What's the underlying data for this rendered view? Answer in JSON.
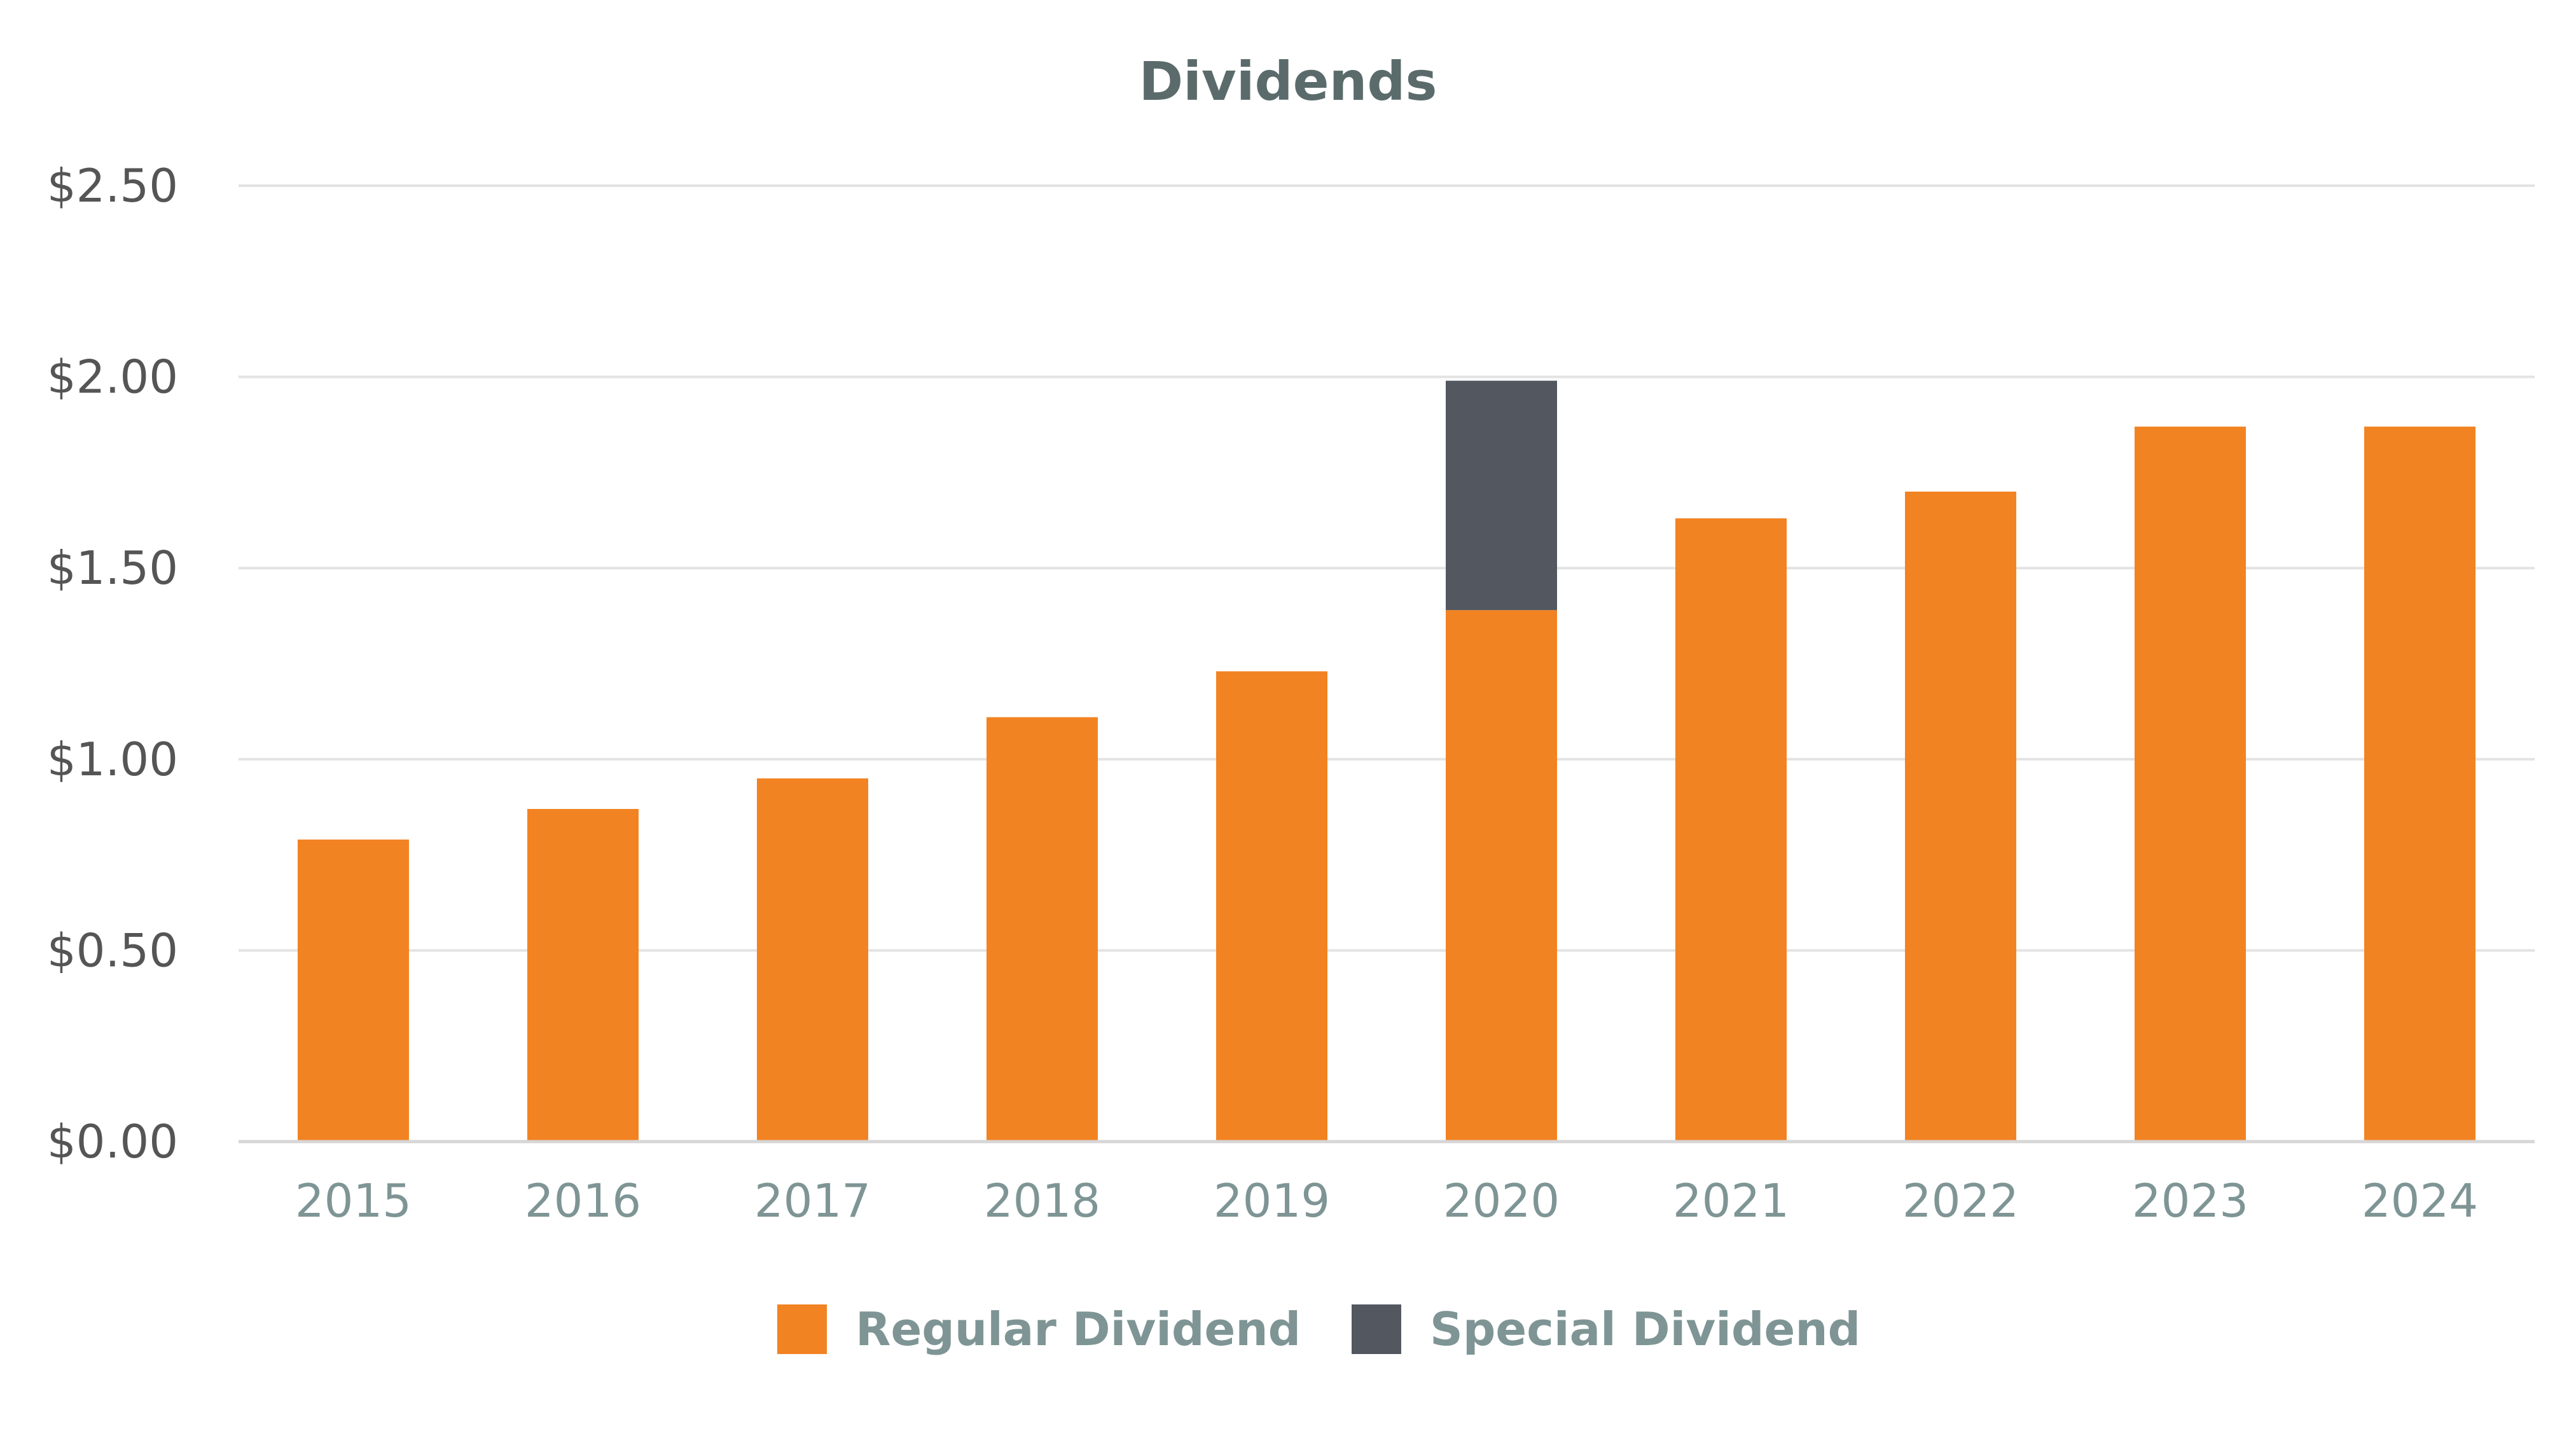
{
  "chart_data": {
    "type": "bar",
    "stacked": true,
    "title": "Dividends",
    "xlabel": "",
    "ylabel": "",
    "categories": [
      "2015",
      "2016",
      "2017",
      "2018",
      "2019",
      "2020",
      "2021",
      "2022",
      "2023",
      "2024"
    ],
    "series": [
      {
        "name": "Regular Dividend",
        "color": "#F28322",
        "values": [
          0.79,
          0.87,
          0.95,
          1.11,
          1.23,
          1.39,
          1.63,
          1.7,
          1.87,
          1.87
        ]
      },
      {
        "name": "Special Dividend",
        "color": "#535860",
        "values": [
          0,
          0,
          0,
          0,
          0,
          0.6,
          0,
          0,
          0,
          0
        ]
      }
    ],
    "ylim": [
      0,
      2.5
    ],
    "yticks": [
      0,
      0.5,
      1.0,
      1.5,
      2.0,
      2.5
    ],
    "ytick_labels": [
      "$0.00",
      "$0.50",
      "$1.00",
      "$1.50",
      "$2.00",
      "$2.50"
    ],
    "grid": true,
    "legend_position": "bottom-center"
  }
}
